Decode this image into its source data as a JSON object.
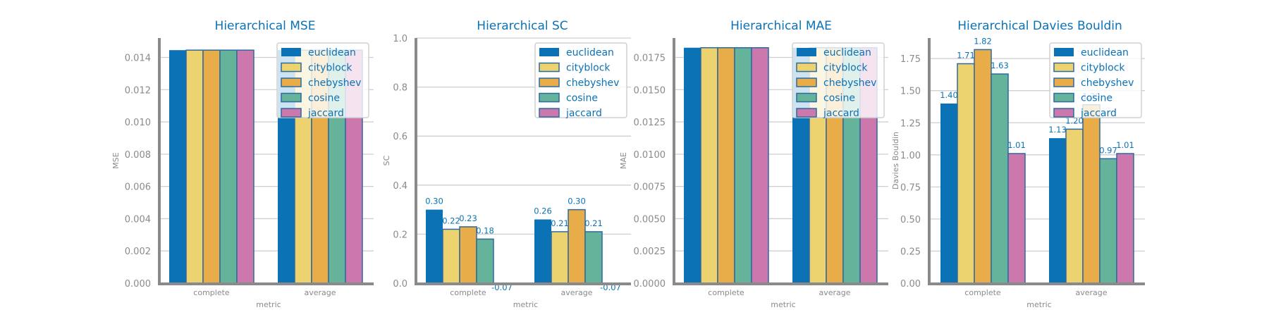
{
  "colors": {
    "euclidean": "#0b72b5",
    "cityblock": "#ecd370",
    "chebyshev": "#e8ad48",
    "cosine": "#66b39b",
    "jaccard": "#cd78ad",
    "text_accent": "#0b72b5",
    "axis": "#8a8a8a",
    "grid": "#cfcfcf",
    "bar_edge": "#2c6aa0"
  },
  "chart_data": [
    {
      "type": "bar",
      "title": "Hierarchical MSE",
      "xlabel": "metric",
      "ylabel": "MSE",
      "categories": [
        "complete",
        "average"
      ],
      "ylim": [
        0,
        0.0152
      ],
      "yticks": [
        0.0,
        0.002,
        0.004,
        0.006,
        0.008,
        0.01,
        0.012,
        0.014
      ],
      "ytick_labels": [
        "0.000",
        "0.002",
        "0.004",
        "0.006",
        "0.008",
        "0.010",
        "0.012",
        "0.014"
      ],
      "grid": true,
      "legend": "top-right",
      "show_data_labels": false,
      "series": [
        {
          "name": "euclidean",
          "values": [
            0.01445,
            0.01445
          ]
        },
        {
          "name": "cityblock",
          "values": [
            0.01445,
            0.01445
          ]
        },
        {
          "name": "chebyshev",
          "values": [
            0.01445,
            0.01445
          ]
        },
        {
          "name": "cosine",
          "values": [
            0.01445,
            0.01445
          ]
        },
        {
          "name": "jaccard",
          "values": [
            0.01445,
            0.01445
          ]
        }
      ]
    },
    {
      "type": "bar",
      "title": "Hierarchical SC",
      "xlabel": "metric",
      "ylabel": "SC",
      "categories": [
        "complete",
        "average"
      ],
      "ylim": [
        0,
        1.0
      ],
      "yticks": [
        0.0,
        0.2,
        0.4,
        0.6,
        0.8,
        1.0
      ],
      "ytick_labels": [
        "0.0",
        "0.2",
        "0.4",
        "0.6",
        "0.8",
        "1.0"
      ],
      "grid": true,
      "legend": "top-right",
      "show_data_labels": true,
      "series": [
        {
          "name": "euclidean",
          "values": [
            0.3,
            0.26
          ],
          "labels": [
            "0.30",
            "0.26"
          ]
        },
        {
          "name": "cityblock",
          "values": [
            0.22,
            0.21
          ],
          "labels": [
            "0.22",
            "0.21"
          ]
        },
        {
          "name": "chebyshev",
          "values": [
            0.23,
            0.3
          ],
          "labels": [
            "0.23",
            "0.30"
          ]
        },
        {
          "name": "cosine",
          "values": [
            0.18,
            0.21
          ],
          "labels": [
            "0.18",
            "0.21"
          ]
        },
        {
          "name": "jaccard",
          "values": [
            -0.07,
            -0.07
          ],
          "labels": [
            "-0.07",
            "-0.07"
          ]
        }
      ]
    },
    {
      "type": "bar",
      "title": "Hierarchical MAE",
      "xlabel": "metric",
      "ylabel": "MAE",
      "categories": [
        "complete",
        "average"
      ],
      "ylim": [
        0,
        0.019
      ],
      "yticks": [
        0.0,
        0.0025,
        0.005,
        0.0075,
        0.01,
        0.0125,
        0.015,
        0.0175
      ],
      "ytick_labels": [
        "0.0000",
        "0.0025",
        "0.0050",
        "0.0075",
        "0.0100",
        "0.0125",
        "0.0150",
        "0.0175"
      ],
      "grid": true,
      "legend": "top-right",
      "show_data_labels": false,
      "series": [
        {
          "name": "euclidean",
          "values": [
            0.01825,
            0.01825
          ]
        },
        {
          "name": "cityblock",
          "values": [
            0.01825,
            0.01825
          ]
        },
        {
          "name": "chebyshev",
          "values": [
            0.01825,
            0.01825
          ]
        },
        {
          "name": "cosine",
          "values": [
            0.01825,
            0.01825
          ]
        },
        {
          "name": "jaccard",
          "values": [
            0.01825,
            0.01825
          ]
        }
      ]
    },
    {
      "type": "bar",
      "title": "Hierarchical Davies Bouldin",
      "xlabel": "metric",
      "ylabel": "Davies Bouldin",
      "categories": [
        "complete",
        "average"
      ],
      "ylim": [
        0,
        1.91
      ],
      "yticks": [
        0.0,
        0.25,
        0.5,
        0.75,
        1.0,
        1.25,
        1.5,
        1.75
      ],
      "ytick_labels": [
        "0.00",
        "0.25",
        "0.50",
        "0.75",
        "1.00",
        "1.25",
        "1.50",
        "1.75"
      ],
      "grid": true,
      "legend": "top-right",
      "show_data_labels": true,
      "series": [
        {
          "name": "euclidean",
          "values": [
            1.4,
            1.13
          ],
          "labels": [
            "1.40",
            "1.13"
          ]
        },
        {
          "name": "cityblock",
          "values": [
            1.71,
            1.2
          ],
          "labels": [
            "1.71",
            "1.20"
          ]
        },
        {
          "name": "chebyshev",
          "values": [
            1.82,
            1.39
          ],
          "labels": [
            "1.82",
            "1.39"
          ]
        },
        {
          "name": "cosine",
          "values": [
            1.63,
            0.97
          ],
          "labels": [
            "1.63",
            "0.97"
          ]
        },
        {
          "name": "jaccard",
          "values": [
            1.01,
            1.01
          ],
          "labels": [
            "1.01",
            "1.01"
          ]
        }
      ]
    }
  ]
}
